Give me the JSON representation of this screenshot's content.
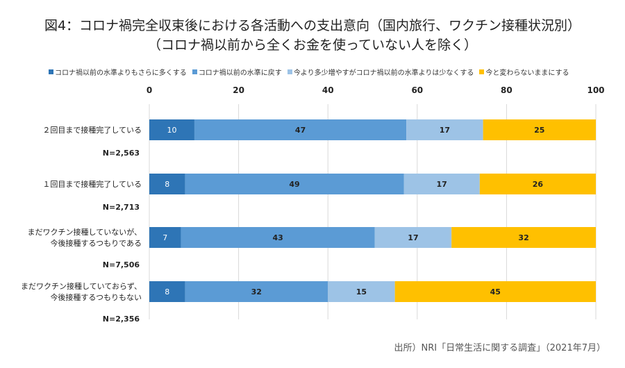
{
  "chart_data": {
    "type": "bar",
    "stacked": true,
    "orientation": "horizontal",
    "title": "図4：コロナ禍完全収束後における各活動への支出意向（国内旅行、ワクチン接種状況別）",
    "subtitle": "（コロナ禍以前から全くお金を使っていない人を除く）",
    "categories": [
      [
        "２回目まで接種完了している"
      ],
      [
        "１回目まで接種完了している"
      ],
      [
        "まだワクチン接種していないが、",
        "今後接種するつもりである"
      ],
      [
        "まだワクチン接種していておらず、",
        "今後接種するつもりもない"
      ]
    ],
    "sample_sizes": [
      "N=2,563",
      "N=2,713",
      "N=7,506",
      "N=2,356"
    ],
    "series": [
      {
        "name": "コロナ禍以前の水準よりもさらに多くする",
        "color": "#2e75b6",
        "label_color": "#ffffff",
        "values": [
          10,
          8,
          7,
          8
        ]
      },
      {
        "name": "コロナ禍以前の水準に戻す",
        "color": "#5b9bd5",
        "label_color": "#222222",
        "values": [
          47,
          49,
          43,
          32
        ]
      },
      {
        "name": "今より多少増やすがコロナ禍以前の水準よりは少なくする",
        "color": "#9dc3e6",
        "label_color": "#222222",
        "values": [
          17,
          17,
          17,
          15
        ]
      },
      {
        "name": "今と変わらないままにする",
        "color": "#ffc000",
        "label_color": "#222222",
        "values": [
          25,
          26,
          32,
          45
        ]
      }
    ],
    "xlim": [
      0,
      100
    ],
    "xticks": [
      0,
      20,
      40,
      60,
      80,
      100
    ],
    "grid": true,
    "legend_position": "top",
    "source": "出所）NRI「日常生活に関する調査」（2021年7月）"
  }
}
